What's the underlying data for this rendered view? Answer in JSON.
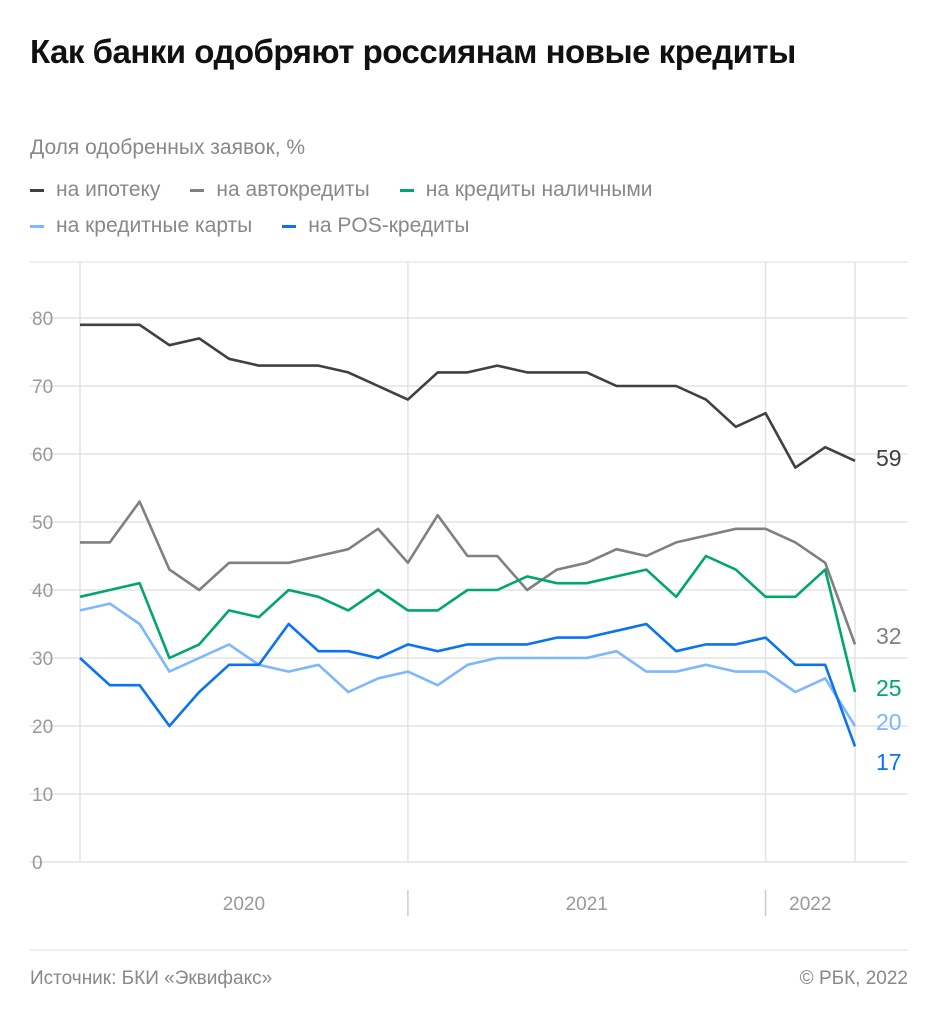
{
  "title": "Как банки одобряют россиянам новые кредиты",
  "subtitle": "Доля одобренных заявок, %",
  "source": "Источник: БКИ «Эквифакс»",
  "copyright": "© РБК, 2022",
  "chart_data": {
    "type": "line",
    "title": "Как банки одобряют россиянам новые кредиты",
    "ylabel": "Доля одобренных заявок, %",
    "ylim": [
      0,
      80
    ],
    "yticks": [
      "0",
      "10",
      "20",
      "30",
      "40",
      "50",
      "60",
      "70",
      "80"
    ],
    "year_labels": [
      "2020",
      "2021",
      "2022"
    ],
    "grid": true,
    "legend_placement": "top",
    "series": [
      {
        "name": "на ипотеку",
        "color": "#404040",
        "end_label": "59",
        "values": [
          79,
          79,
          79,
          76,
          77,
          74,
          73,
          73,
          73,
          72,
          70,
          68,
          72,
          72,
          73,
          72,
          72,
          72,
          70,
          70,
          70,
          68,
          64,
          66,
          58,
          61,
          59
        ]
      },
      {
        "name": "на автокредиты",
        "color": "#808080",
        "end_label": "32",
        "values": [
          47,
          47,
          53,
          43,
          40,
          44,
          44,
          44,
          45,
          46,
          49,
          44,
          51,
          45,
          45,
          40,
          43,
          44,
          46,
          45,
          47,
          48,
          49,
          49,
          47,
          44,
          32
        ]
      },
      {
        "name": "на кредиты наличными",
        "color": "#00a66e",
        "end_label": "25",
        "values": [
          39,
          40,
          41,
          30,
          32,
          37,
          36,
          40,
          39,
          37,
          40,
          37,
          37,
          40,
          40,
          42,
          41,
          41,
          42,
          43,
          39,
          45,
          43,
          39,
          39,
          43,
          25
        ]
      },
      {
        "name": "на кредитные карты",
        "color": "#7db7ff",
        "end_label": "20",
        "values": [
          37,
          38,
          35,
          28,
          30,
          32,
          29,
          28,
          29,
          25,
          27,
          28,
          26,
          29,
          30,
          30,
          30,
          30,
          31,
          28,
          28,
          29,
          28,
          28,
          25,
          27,
          20
        ]
      },
      {
        "name": "на POS-кредиты",
        "color": "#0a74f0",
        "end_label": "17",
        "values": [
          30,
          26,
          26,
          20,
          25,
          29,
          29,
          35,
          31,
          31,
          30,
          32,
          31,
          32,
          32,
          32,
          33,
          33,
          34,
          35,
          31,
          32,
          32,
          33,
          29,
          29,
          17
        ]
      }
    ]
  }
}
